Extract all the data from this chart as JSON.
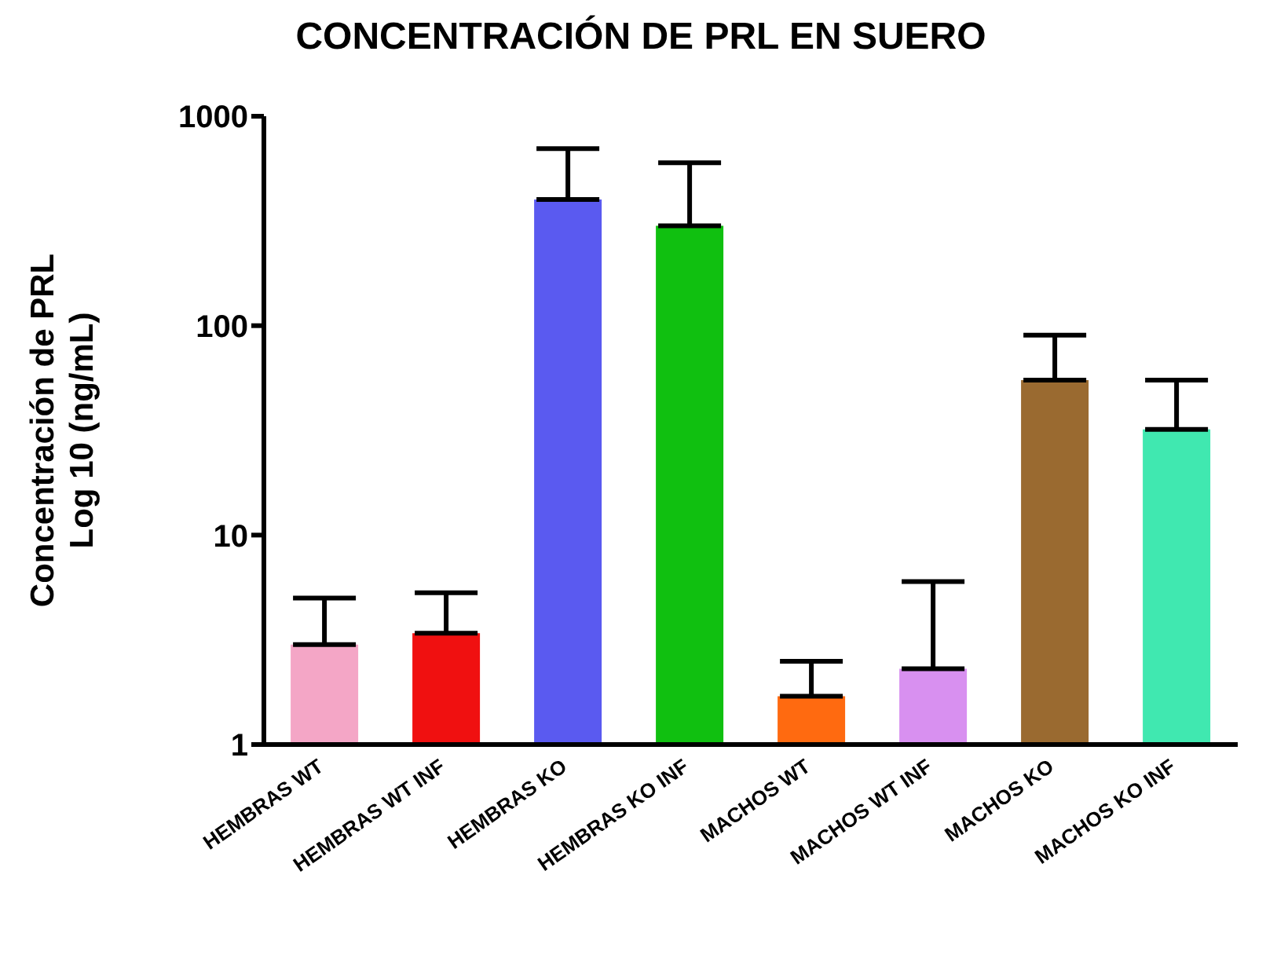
{
  "chart_data": {
    "type": "bar",
    "title": "CONCENTRACIÓN DE PRL EN SUERO",
    "ylabel": "Concentración de PRL\nLog 10 (ng/mL)",
    "categories": [
      "HEMBRAS WT",
      "HEMBRAS WT INF",
      "HEMBRAS KO",
      "HEMBRAS KO INF",
      "MACHOS WT",
      "MACHOS WT INF",
      "MACHOS KO",
      "MACHOS KO INF"
    ],
    "values": [
      3.0,
      3.4,
      400,
      300,
      1.7,
      2.3,
      55,
      32
    ],
    "errors": [
      [
        3.0,
        5
      ],
      [
        3.4,
        5.3
      ],
      [
        400,
        700
      ],
      [
        300,
        600
      ],
      [
        1.7,
        2.5
      ],
      [
        2.3,
        6
      ],
      [
        55,
        90
      ],
      [
        32,
        55
      ]
    ],
    "colors": [
      "#f4a6c6",
      "#f01010",
      "#5a5af0",
      "#10c010",
      "#ff6a10",
      "#d890f0",
      "#9a6a30",
      "#40e8b0"
    ],
    "log": true,
    "ylim": [
      1,
      1000
    ],
    "yticks": [
      1,
      10,
      100,
      1000
    ],
    "grid": false,
    "legend": false
  }
}
